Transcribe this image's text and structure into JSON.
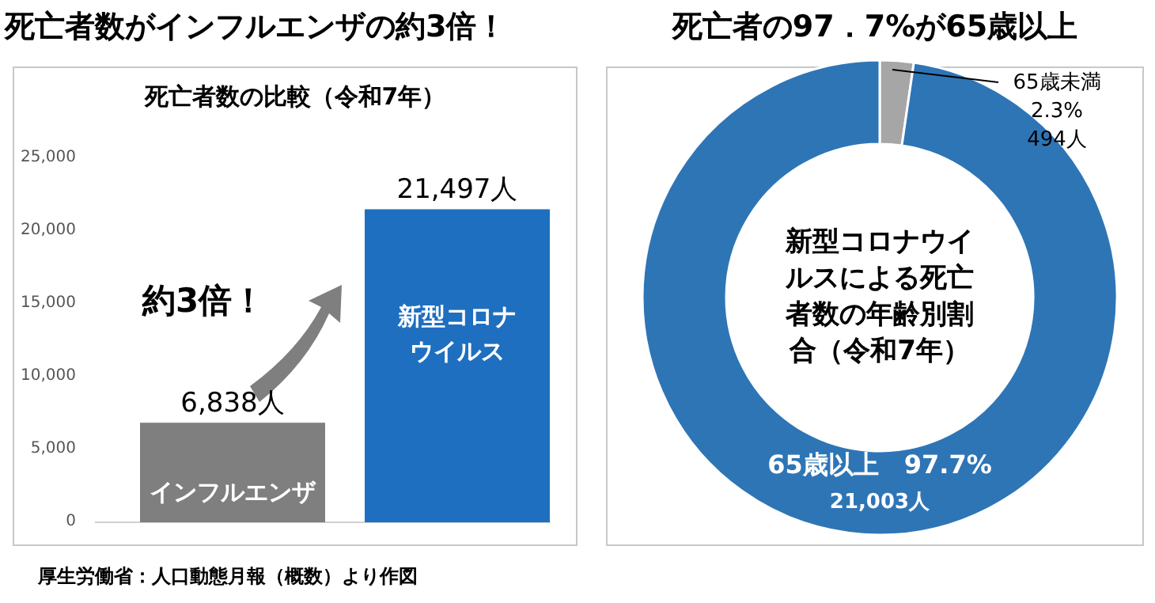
{
  "chart_data": [
    {
      "type": "bar",
      "title": "死亡者数がインフルエンザの約3倍！",
      "subtitle": "死亡者数の比較（令和7年）",
      "categories": [
        "インフルエンザ",
        "新型コロナウイルス"
      ],
      "values": [
        6838,
        21497
      ],
      "value_labels": [
        "6,838人",
        "21,497人"
      ],
      "colors": [
        "#7f7f7f",
        "#1f6fc0"
      ],
      "ylim": [
        0,
        25000
      ],
      "yticks": [
        0,
        {
          "value": 5000,
          "label": "5,000"
        },
        {
          "value": 10000,
          "label": "10,000"
        },
        {
          "value": 15000,
          "label": "15,000"
        },
        {
          "value": 20000,
          "label": "20,000"
        },
        {
          "value": 25000,
          "label": "25,000"
        }
      ],
      "annotations": [
        "約3倍！",
        "厚生労働省：人口動態月報（概数）より作図"
      ]
    },
    {
      "type": "donut",
      "title": "死亡者の97．7%が65歳以上",
      "categories": [
        "65歳未満",
        "65歳以上"
      ],
      "values": [
        2.3,
        97.7
      ],
      "value_labels": [
        "2.3%",
        "97.7%"
      ],
      "colors": [
        "#a6a6a6",
        "#2e75b6"
      ],
      "annotations": [
        "新型コロナウイルスによる死亡者数の年齢別割合（令和7年）",
        "494人",
        "21,003人"
      ]
    }
  ]
}
